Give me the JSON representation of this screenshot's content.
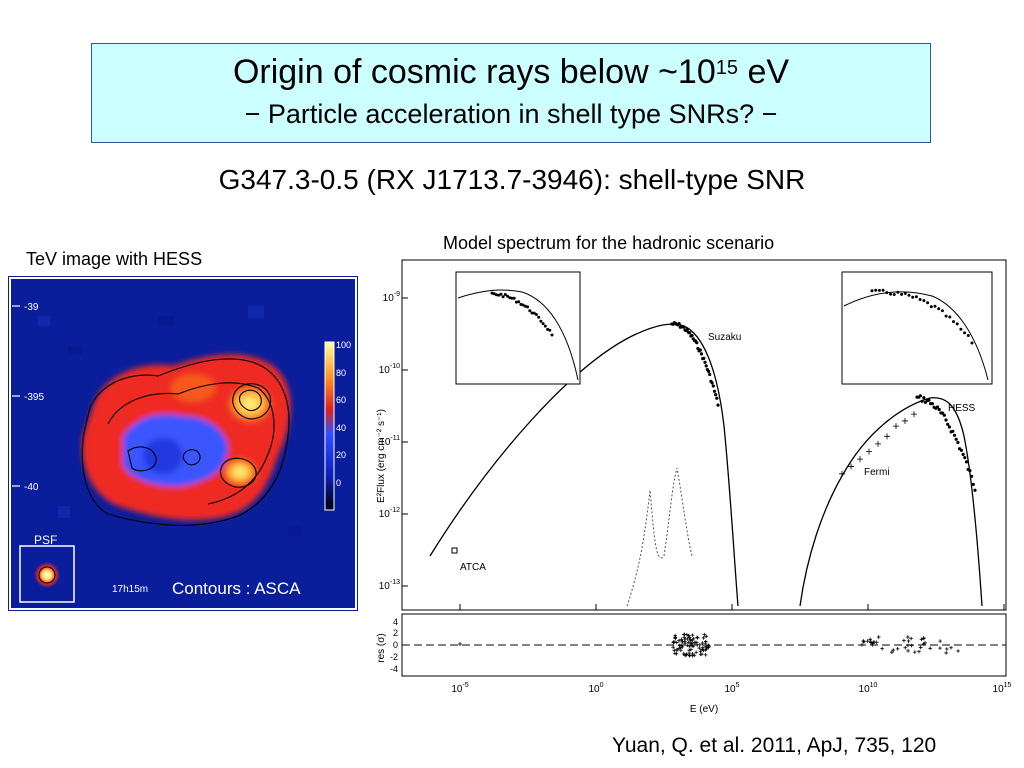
{
  "title": {
    "line1_main": "Origin of cosmic rays below ~10",
    "line1_sup": "15",
    "line1_end": " eV",
    "line2_dash_left": "−",
    "line2": "Particle acceleration in shell type SNRs?",
    "line2_dash_right": "−"
  },
  "subtitle": "G347.3-0.5 (RX J1713.7-3946): shell-type SNR",
  "left_panel": {
    "label": "TeV image with HESS",
    "y_ticks": [
      "-39",
      "-395",
      "-40"
    ],
    "x_tick": "17h15m",
    "colorbar_ticks": [
      "100",
      "80",
      "60",
      "40",
      "20",
      "0"
    ],
    "psf_label": "PSF",
    "contour_note": "Contours : ASCA",
    "colors": {
      "background": "#0a1e9c",
      "shell_red": "#ee2a20",
      "hot": "#ffe060",
      "contour": "#000000"
    }
  },
  "right_panel": {
    "label": "Model spectrum for the hadronic scenario",
    "y_axis_label": "E²Flux (erg cm⁻² s⁻¹)",
    "y_ticks": [
      {
        "base": "10",
        "exp": "-9"
      },
      {
        "base": "10",
        "exp": "-10"
      },
      {
        "base": "10",
        "exp": "-11"
      },
      {
        "base": "10",
        "exp": "-12"
      },
      {
        "base": "10",
        "exp": "-13"
      }
    ],
    "res_label": "res (σ)",
    "res_ticks": [
      "4",
      "2",
      "0",
      "-2",
      "-4"
    ],
    "x_ticks": [
      {
        "base": "10",
        "exp": "-5"
      },
      {
        "base": "10",
        "exp": "0"
      },
      {
        "base": "10",
        "exp": "5"
      },
      {
        "base": "10",
        "exp": "10"
      },
      {
        "base": "10",
        "exp": "15"
      }
    ],
    "x_axis_label": "E (eV)",
    "annotations": {
      "suzaku": "Suzaku",
      "hess": "HESS",
      "fermi": "Fermi",
      "atca": "ATCA"
    }
  },
  "citation": "Yuan, Q. et al. 2011, ApJ, 735, 120"
}
